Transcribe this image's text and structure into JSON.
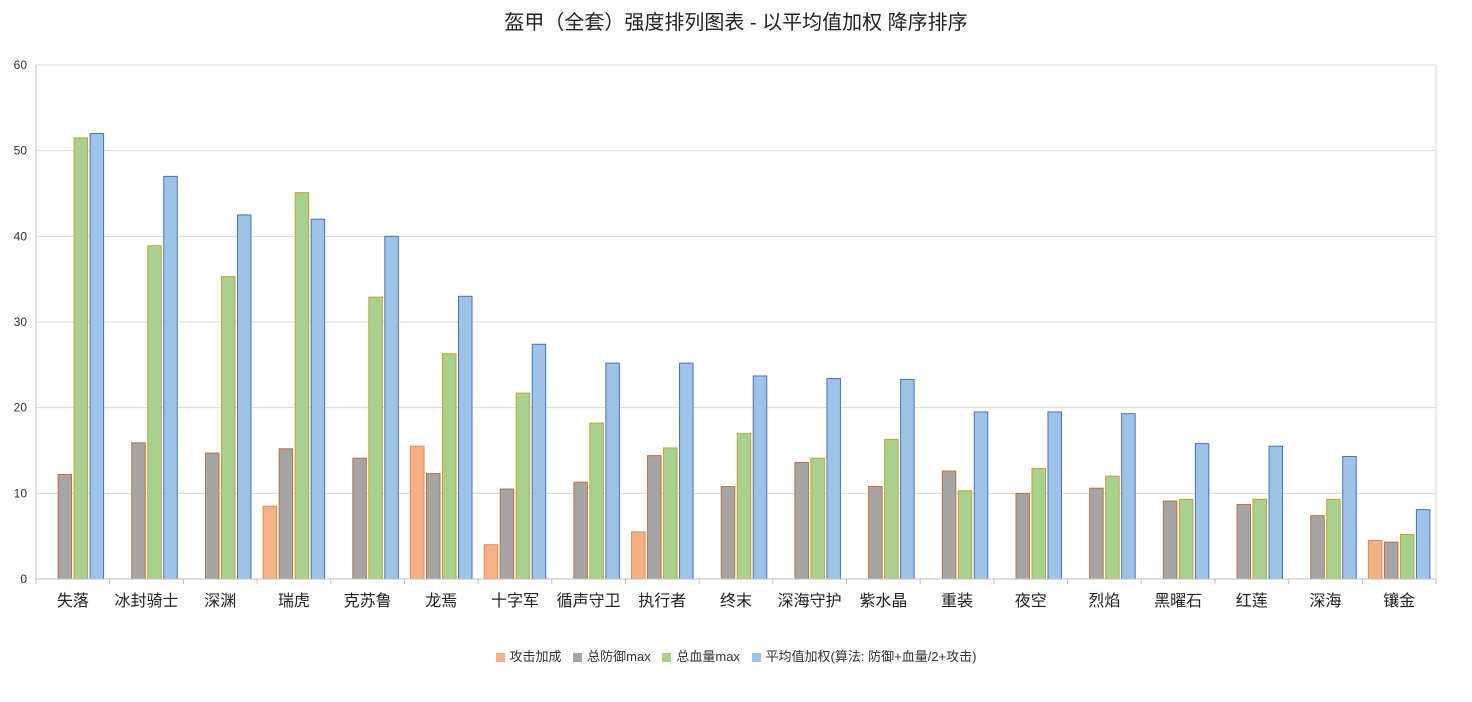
{
  "chart_data": {
    "type": "bar",
    "title": "盔甲（全套）强度排列图表 - 以平均值加权 降序排序",
    "categories": [
      "失落",
      "冰封骑士",
      "深渊",
      "瑞虎",
      "克苏鲁",
      "龙焉",
      "十字军",
      "循声守卫",
      "执行者",
      "终末",
      "深海守护",
      "紫水晶",
      "重装",
      "夜空",
      "烈焰",
      "黑曜石",
      "红莲",
      "深海",
      "镶金"
    ],
    "series": [
      {
        "name": "攻击加成",
        "color": "#F4B183",
        "stroke": "#E08A56",
        "values": [
          0,
          0,
          0,
          8.5,
          0,
          15.5,
          4,
          0,
          5.5,
          0,
          0,
          0,
          0,
          0,
          0,
          0,
          0,
          0,
          4.5
        ]
      },
      {
        "name": "总防御max",
        "color": "#A5A5A5",
        "stroke": "#C0703A",
        "values": [
          12.2,
          15.9,
          14.7,
          15.2,
          14.1,
          12.3,
          10.5,
          11.3,
          14.4,
          10.8,
          13.6,
          10.8,
          12.6,
          10,
          10.6,
          9.1,
          8.7,
          7.4,
          4.3
        ]
      },
      {
        "name": "总血量max",
        "color": "#A9D18E",
        "stroke": "#C9A227",
        "values": [
          51.5,
          38.9,
          35.3,
          45.1,
          32.9,
          26.3,
          21.7,
          18.2,
          15.3,
          17,
          14.1,
          16.3,
          10.3,
          12.9,
          12,
          9.3,
          9.3,
          9.3,
          5.2
        ]
      },
      {
        "name": "平均值加权(算法: 防御+血量/2+攻击)",
        "color": "#9DC3E6",
        "stroke": "#4472C4",
        "values": [
          52,
          47,
          42.5,
          42,
          40,
          33,
          27.4,
          25.2,
          25.2,
          23.7,
          23.4,
          23.3,
          19.5,
          19.5,
          19.3,
          15.8,
          15.5,
          14.3,
          8.1
        ]
      }
    ],
    "ylim": [
      0,
      60
    ],
    "yticks": [
      0,
      10,
      20,
      30,
      40,
      50,
      60
    ],
    "grid": true,
    "legend_position": "bottom"
  }
}
